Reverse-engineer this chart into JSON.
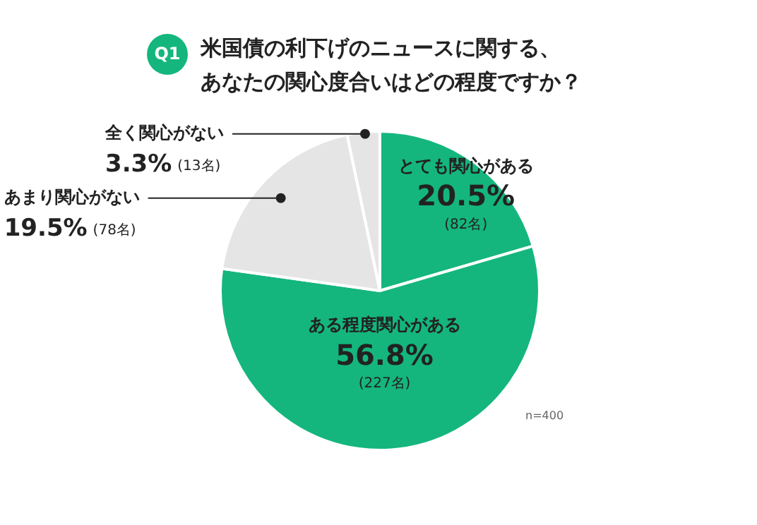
{
  "chart_data": {
    "type": "pie",
    "subtitle": "Q1",
    "title": "米国債の利下げのニュースに関する、あなたの関心度合いはどの程度ですか？",
    "categories": [
      "とても関心がある",
      "ある程度関心がある",
      "あまり関心がない",
      "全く関心がない"
    ],
    "values": [
      20.5,
      56.8,
      19.5,
      3.3
    ],
    "colors": [
      "#14b67e",
      "#14b67e",
      "#e5e5e5",
      "#e5e5e5"
    ],
    "value_labels": [
      "20.5% (82名)",
      "56.8% (227名)",
      "19.5% (78名)",
      "3.3% (13名)"
    ],
    "annotations": [
      "n=400"
    ],
    "legend": false
  }
}
